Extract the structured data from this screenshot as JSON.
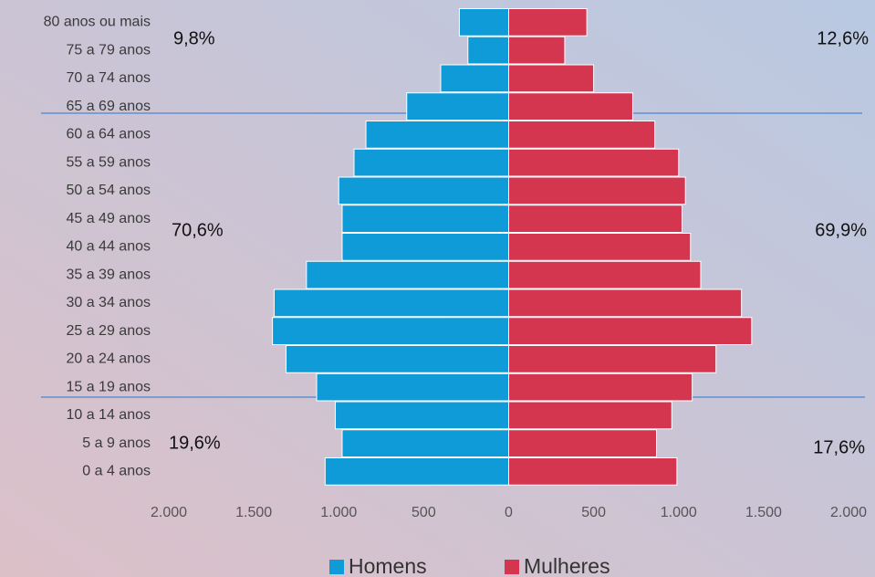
{
  "chart_data": {
    "type": "pyramid",
    "categories": [
      "80 anos ou mais",
      "75 a 79 anos",
      "70 a 74 anos",
      "65 a 69 anos",
      "60 a 64 anos",
      "55 a 59 anos",
      "50 a 54 anos",
      "45 a 49 anos",
      "40 a 44 anos",
      "35 a 39 anos",
      "30 a 34 anos",
      "25 a 29 anos",
      "20 a 24 anos",
      "15 a 19 anos",
      "10 a 14 anos",
      "5 a 9 anos",
      "0 a 4 anos"
    ],
    "series": [
      {
        "name": "Homens",
        "color": "#0f9bd7",
        "values": [
          -290,
          -240,
          -400,
          -600,
          -840,
          -910,
          -1000,
          -980,
          -980,
          -1190,
          -1380,
          -1390,
          -1310,
          -1130,
          -1020,
          -980,
          -1080
        ]
      },
      {
        "name": "Mulheres",
        "color": "#d43650",
        "values": [
          460,
          330,
          500,
          730,
          860,
          1000,
          1040,
          1020,
          1070,
          1130,
          1370,
          1430,
          1220,
          1080,
          960,
          870,
          990
        ]
      }
    ],
    "xlim": [
      -2000,
      2000
    ],
    "xticks": [
      {
        "value": -2000,
        "label": "2.000"
      },
      {
        "value": -1500,
        "label": "1.500"
      },
      {
        "value": -1000,
        "label": "1.000"
      },
      {
        "value": -500,
        "label": "500"
      },
      0,
      500,
      {
        "value": 1000,
        "label": "1.000"
      },
      {
        "value": 1500,
        "label": "1.500"
      },
      {
        "value": 2000,
        "label": "2.000"
      }
    ],
    "annotations": [
      "9,8%",
      "12,6%",
      "70,6%",
      "69,9%",
      "19,6%",
      "17,6%"
    ],
    "legend": "bottom"
  }
}
